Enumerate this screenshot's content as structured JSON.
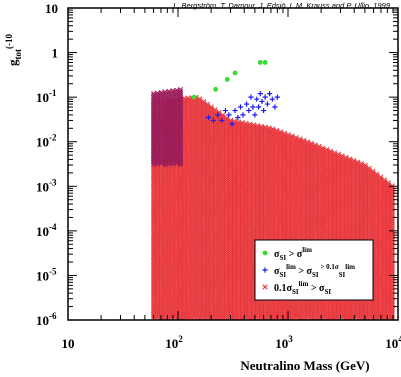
{
  "chart_data": {
    "type": "scatter",
    "credit": "L. Bergström, T. Damour, J. Edsjö, L.M. Krauss and P. Ullio, 1999",
    "xlabel": "Neutralino Mass (GeV)",
    "ylabel_main": "g",
    "ylabel_sub": "tot",
    "ylabel_extra": "(-10",
    "x_scale": "log",
    "y_scale": "log",
    "xlim": [
      10,
      10000
    ],
    "ylim": [
      1e-06,
      10
    ],
    "x_ticks": [
      {
        "value": 10,
        "base": "10",
        "exp": ""
      },
      {
        "value": 100,
        "base": "10",
        "exp": "2"
      },
      {
        "value": 1000,
        "base": "10",
        "exp": "3"
      },
      {
        "value": 10000,
        "base": "10",
        "exp": "4"
      }
    ],
    "y_ticks": [
      {
        "value": 10,
        "base": "10",
        "exp": ""
      },
      {
        "value": 1,
        "base": "1",
        "exp": ""
      },
      {
        "value": 0.1,
        "base": "10",
        "exp": "-1"
      },
      {
        "value": 0.01,
        "base": "10",
        "exp": "-2"
      },
      {
        "value": 0.001,
        "base": "10",
        "exp": "-3"
      },
      {
        "value": 0.0001,
        "base": "10",
        "exp": "-4"
      },
      {
        "value": 1e-05,
        "base": "10",
        "exp": "-5"
      },
      {
        "value": 1e-06,
        "base": "10",
        "exp": "-6"
      }
    ],
    "legend": {
      "placement": "bottom-right",
      "entries": [
        {
          "marker": "dot",
          "color": "#33dd33",
          "parts": [
            "σ",
            "SI",
            "",
            " > σ",
            "",
            "lim"
          ]
        },
        {
          "marker": "plus",
          "color": "#1a1aff",
          "parts": [
            "σ",
            "SI",
            "lim",
            " > σ",
            "SI",
            " > 0.1σ",
            "SI",
            "lim"
          ]
        },
        {
          "marker": "cross",
          "color": "#e8373c",
          "parts": [
            "0.1σ",
            "SI",
            "lim",
            " > σ",
            "SI",
            ""
          ]
        }
      ]
    },
    "series": [
      {
        "marker": "cross",
        "color": "#e8373c",
        "regions": [
          {
            "x_from": 60,
            "x_to": 9000,
            "upper": [
              [
                60,
                0.08
              ],
              [
                150,
                0.1
              ],
              [
                300,
                0.03
              ],
              [
                700,
                0.02
              ],
              [
                1500,
                0.01
              ],
              [
                3000,
                0.005
              ],
              [
                5000,
                0.003
              ],
              [
                9000,
                0.001
              ]
            ],
            "lower": 1e-06,
            "step": 0.035
          }
        ]
      },
      {
        "marker": "cross",
        "color": "#9b1d5a",
        "regions": [
          {
            "x_from": 60,
            "x_to": 110,
            "upper": [
              [
                60,
                0.12
              ],
              [
                110,
                0.15
              ]
            ],
            "lower": 0.003,
            "step": 0.035
          }
        ]
      },
      {
        "marker": "plus",
        "color": "#1a1aff",
        "points": [
          [
            190,
            0.035
          ],
          [
            210,
            0.03
          ],
          [
            230,
            0.04
          ],
          [
            250,
            0.03
          ],
          [
            270,
            0.05
          ],
          [
            290,
            0.04
          ],
          [
            310,
            0.025
          ],
          [
            330,
            0.05
          ],
          [
            350,
            0.035
          ],
          [
            370,
            0.06
          ],
          [
            390,
            0.04
          ],
          [
            420,
            0.07
          ],
          [
            440,
            0.05
          ],
          [
            460,
            0.1
          ],
          [
            480,
            0.06
          ],
          [
            500,
            0.04
          ],
          [
            520,
            0.09
          ],
          [
            540,
            0.06
          ],
          [
            560,
            0.12
          ],
          [
            580,
            0.08
          ],
          [
            600,
            0.05
          ],
          [
            620,
            0.1
          ],
          [
            650,
            0.07
          ],
          [
            680,
            0.12
          ],
          [
            720,
            0.09
          ],
          [
            760,
            0.06
          ],
          [
            800,
            0.1
          ]
        ]
      },
      {
        "marker": "dot",
        "color": "#33dd33",
        "points": [
          [
            140,
            0.1
          ],
          [
            220,
            0.15
          ],
          [
            280,
            0.25
          ],
          [
            330,
            0.35
          ],
          [
            560,
            0.6
          ],
          [
            620,
            0.6
          ]
        ]
      }
    ]
  }
}
